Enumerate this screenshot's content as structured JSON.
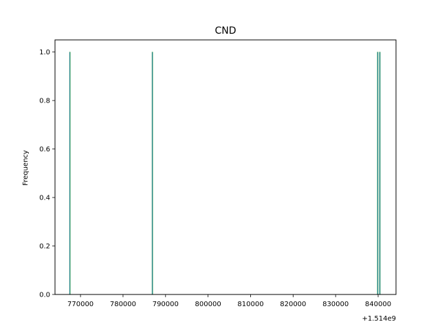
{
  "chart_data": {
    "type": "bar",
    "title": "CND",
    "xlabel": "",
    "ylabel": "Frequency",
    "x_offset_label": "+1.514e9",
    "x_offset": 1514000000,
    "xlim": [
      1514764000,
      1514844200
    ],
    "ylim": [
      0,
      1.05
    ],
    "x_ticks": [
      1514770000,
      1514780000,
      1514790000,
      1514800000,
      1514810000,
      1514820000,
      1514830000,
      1514840000
    ],
    "x_tick_labels": [
      "770000",
      "780000",
      "790000",
      "800000",
      "810000",
      "820000",
      "830000",
      "840000"
    ],
    "y_ticks": [
      0.0,
      0.2,
      0.4,
      0.6,
      0.8,
      1.0
    ],
    "y_tick_labels": [
      "0.0",
      "0.2",
      "0.4",
      "0.6",
      "0.8",
      "1.0"
    ],
    "bins": [
      {
        "x": 1514767500,
        "value": 1
      },
      {
        "x": 1514786900,
        "value": 1
      },
      {
        "x": 1514839900,
        "value": 1
      },
      {
        "x": 1514840400,
        "value": 1
      }
    ],
    "bar_color": "#1f77b4",
    "bar_edge_color": "#2ca02c",
    "grid": false,
    "legend": "none"
  }
}
